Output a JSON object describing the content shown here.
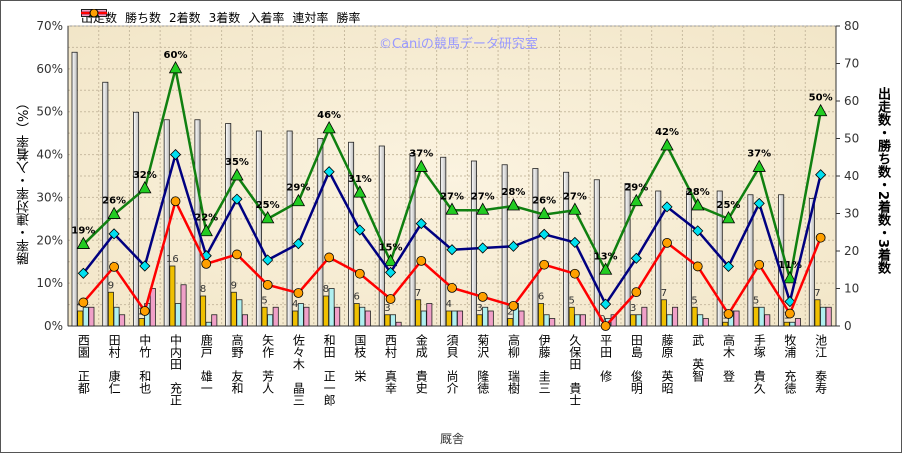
{
  "chart_data": {
    "type": "bar+line",
    "watermark": "©Caniの競馬データ研究室",
    "xlabel": "厩舎",
    "ylabel_left": "勝率・連対率・入着率（%）",
    "ylabel_right": "出走数・勝ち数・2着数・3着数",
    "ylim_left": [
      0,
      70
    ],
    "ylim_right": [
      0,
      80
    ],
    "yticks_left": [
      "0%",
      "10%",
      "20%",
      "30%",
      "40%",
      "50%",
      "60%",
      "70%"
    ],
    "yticks_right": [
      "0",
      "10",
      "20",
      "30",
      "40",
      "50",
      "60",
      "70",
      "80"
    ],
    "legend": [
      "出走数",
      "勝ち数",
      "2着数",
      "3着数",
      "入着率",
      "連対率",
      "勝率"
    ],
    "categories": [
      "西園 正都",
      "田村 康仁",
      "中竹 和也",
      "中内田 充正",
      "鹿戸 雄一",
      "高野 友和",
      "矢作 芳人",
      "佐々木 晶三",
      "和田 正一郎",
      "国枝 栄",
      "西村 真幸",
      "金成 貴史",
      "須貝 尚介",
      "菊沢 隆徳",
      "高柳 瑞樹",
      "伊藤 圭三",
      "久保田 貴士",
      "平田 修",
      "田島 俊明",
      "藤原 英昭",
      "武 英智",
      "高木 登",
      "手塚 貴久",
      "牧浦 充徳",
      "池江 泰寿"
    ],
    "series": [
      {
        "name": "出走数",
        "values": [
          73,
          65,
          57,
          55,
          55,
          54,
          52,
          52,
          50,
          49,
          48,
          46,
          45,
          44,
          43,
          42,
          41,
          39,
          38,
          36,
          36,
          36,
          35,
          35,
          34
        ]
      },
      {
        "name": "勝ち数",
        "values": [
          4,
          9,
          2,
          16,
          8,
          9,
          5,
          4,
          8,
          6,
          3,
          7,
          4,
          3,
          2,
          6,
          5,
          0,
          3,
          7,
          5,
          1,
          5,
          1,
          7
        ]
      },
      {
        "name": "2着数",
        "values": [
          5,
          5,
          6,
          6,
          1,
          7,
          3,
          6,
          10,
          5,
          3,
          4,
          4,
          5,
          6,
          3,
          3,
          2,
          3,
          3,
          3,
          4,
          5,
          1,
          5
        ]
      },
      {
        "name": "3着数",
        "values": [
          5,
          3,
          10,
          11,
          3,
          3,
          5,
          5,
          5,
          4,
          1,
          6,
          4,
          4,
          4,
          2,
          3,
          3,
          5,
          5,
          2,
          4,
          3,
          2,
          5
        ]
      },
      {
        "name": "入着率",
        "values": [
          19,
          26,
          32,
          60,
          22,
          35,
          25,
          29,
          46,
          31,
          15,
          37,
          27,
          27,
          28,
          26,
          27,
          13,
          29,
          42,
          28,
          25,
          37,
          11,
          50
        ]
      },
      {
        "name": "連対率",
        "values": [
          12.3,
          21.5,
          14.0,
          40.0,
          16.4,
          29.6,
          15.4,
          19.2,
          36.0,
          22.4,
          12.5,
          23.9,
          17.8,
          18.2,
          18.6,
          21.4,
          19.5,
          5.1,
          15.8,
          27.8,
          22.2,
          13.9,
          28.6,
          5.7,
          35.3
        ]
      },
      {
        "name": "勝率",
        "values": [
          5.5,
          13.8,
          3.5,
          29.1,
          14.5,
          16.7,
          9.6,
          7.7,
          16.0,
          12.2,
          6.3,
          15.2,
          8.9,
          6.8,
          4.7,
          14.3,
          12.2,
          0,
          7.9,
          19.4,
          13.9,
          2.8,
          14.3,
          2.9,
          20.6
        ]
      }
    ],
    "colors": {
      "runs": "#f2f2f2",
      "wins": "#f0c000",
      "second": "#b0f0f0",
      "third": "#f0a0c8",
      "place": "#108010",
      "rentai": "#000080",
      "win": "#ff0000"
    }
  }
}
